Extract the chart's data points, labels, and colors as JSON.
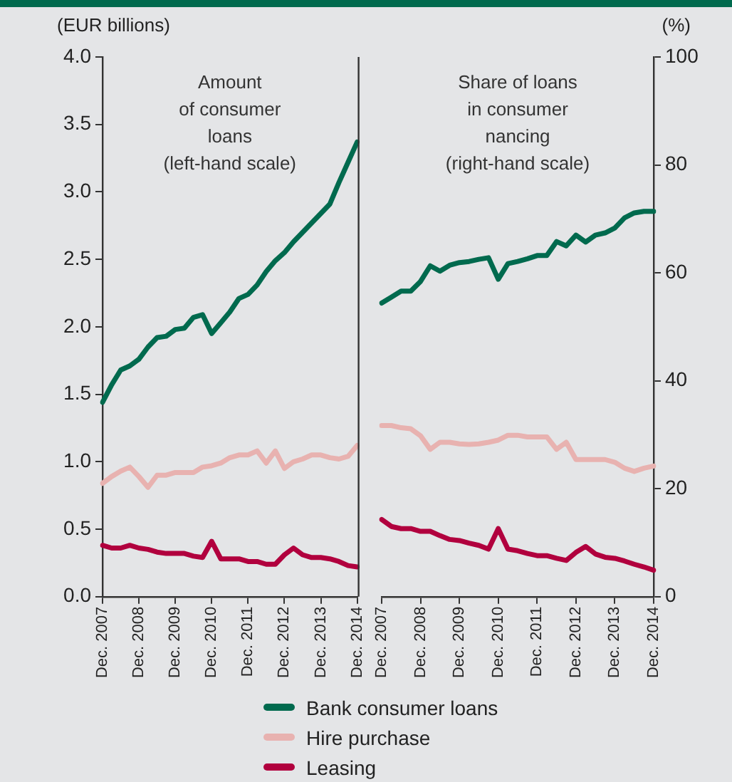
{
  "chart_data": [
    {
      "type": "line",
      "ylabel": "(EUR billions)",
      "annotations": [
        "Amount\nof consumer\nloans\n(left-hand scale)"
      ],
      "categories": [
        "Dec. 2007",
        null,
        null,
        null,
        "Dec. 2008",
        null,
        null,
        null,
        "Dec. 2009",
        null,
        null,
        null,
        "Dec. 2010",
        null,
        null,
        null,
        "Dec. 2011",
        null,
        null,
        null,
        "Dec. 2012",
        null,
        null,
        null,
        "Dec. 2013",
        null,
        null,
        null,
        "Dec. 2014"
      ],
      "ylim": [
        0,
        4
      ],
      "yticks": [
        {
          "value": 0,
          "label": "0.0"
        },
        {
          "value": 0.5,
          "label": "0.5"
        },
        {
          "value": 1,
          "label": "1.0"
        },
        {
          "value": 1.5,
          "label": "1.5"
        },
        {
          "value": 2,
          "label": "2.0"
        },
        {
          "value": 2.5,
          "label": "2.5"
        },
        {
          "value": 3,
          "label": "3.0"
        },
        {
          "value": 3.5,
          "label": "3.5"
        },
        {
          "value": 4,
          "label": "4.0"
        }
      ],
      "grid": false,
      "legend": "bottom",
      "marker": "none",
      "line_style": "solid",
      "series": [
        {
          "name": "Bank consumer loans",
          "color": "#006a4e",
          "values": [
            1.44,
            1.57,
            1.68,
            1.71,
            1.76,
            1.85,
            1.92,
            1.93,
            1.98,
            1.99,
            2.07,
            2.09,
            1.95,
            2.03,
            2.11,
            2.21,
            2.24,
            2.31,
            2.41,
            2.49,
            2.55,
            2.63,
            2.7,
            2.77,
            2.84,
            2.91,
            3.07,
            3.22,
            3.37
          ]
        },
        {
          "name": "Hire purchase",
          "color": "#e8b2b0",
          "values": [
            0.84,
            0.89,
            0.93,
            0.96,
            0.89,
            0.81,
            0.9,
            0.9,
            0.92,
            0.92,
            0.92,
            0.96,
            0.97,
            0.99,
            1.03,
            1.05,
            1.05,
            1.08,
            0.99,
            1.08,
            0.95,
            1.0,
            1.02,
            1.05,
            1.05,
            1.03,
            1.02,
            1.04,
            1.12
          ]
        },
        {
          "name": "Leasing",
          "color": "#b1003e",
          "values": [
            0.38,
            0.36,
            0.36,
            0.38,
            0.36,
            0.35,
            0.33,
            0.32,
            0.32,
            0.32,
            0.3,
            0.29,
            0.41,
            0.28,
            0.28,
            0.28,
            0.26,
            0.26,
            0.24,
            0.24,
            0.31,
            0.36,
            0.31,
            0.29,
            0.29,
            0.28,
            0.26,
            0.23,
            0.22
          ]
        }
      ]
    },
    {
      "type": "line",
      "ylabel": "(%)",
      "annotations": [
        "Share of loans\nin consumer\nnancing\n(right-hand scale)"
      ],
      "categories": [
        "Dec. 2007",
        null,
        null,
        null,
        "Dec. 2008",
        null,
        null,
        null,
        "Dec. 2009",
        null,
        null,
        null,
        "Dec. 2010",
        null,
        null,
        null,
        "Dec. 2011",
        null,
        null,
        null,
        "Dec. 2012",
        null,
        null,
        null,
        "Dec. 2013",
        null,
        null,
        null,
        "Dec. 2014"
      ],
      "ylim": [
        0,
        100
      ],
      "yticks": [
        0,
        20,
        40,
        60,
        80,
        100
      ],
      "grid": false,
      "marker": "none",
      "line_style": "solid",
      "series": [
        {
          "color": "#006a4e",
          "values": [
            54.4,
            55.5,
            56.6,
            56.6,
            58.4,
            61.3,
            60.3,
            61.4,
            61.9,
            62.1,
            62.5,
            62.8,
            58.8,
            61.7,
            62.1,
            62.6,
            63.2,
            63.2,
            65.8,
            65.0,
            67.0,
            65.7,
            67.0,
            67.4,
            68.3,
            70.2,
            71.1,
            71.4,
            71.4
          ]
        },
        {
          "color": "#e8b2b0",
          "values": [
            31.7,
            31.7,
            31.3,
            31.1,
            29.8,
            27.3,
            28.6,
            28.6,
            28.3,
            28.2,
            28.3,
            28.6,
            29.0,
            29.9,
            29.9,
            29.6,
            29.6,
            29.6,
            27.3,
            28.6,
            25.4,
            25.4,
            25.4,
            25.4,
            24.9,
            23.8,
            23.2,
            23.8,
            24.2
          ]
        },
        {
          "color": "#b1003e",
          "values": [
            14.3,
            13.0,
            12.6,
            12.6,
            12.1,
            12.1,
            11.3,
            10.6,
            10.4,
            9.9,
            9.5,
            8.8,
            12.6,
            8.8,
            8.5,
            8.0,
            7.6,
            7.6,
            7.1,
            6.7,
            8.2,
            9.3,
            7.9,
            7.3,
            7.1,
            6.6,
            6.0,
            5.5,
            4.9
          ]
        }
      ]
    }
  ]
}
